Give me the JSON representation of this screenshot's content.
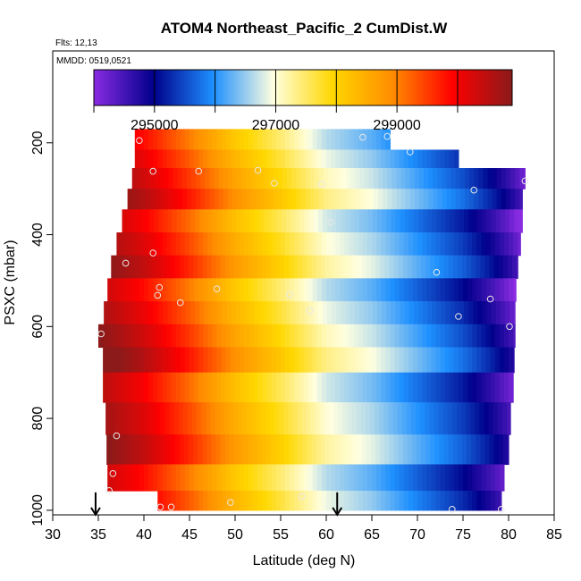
{
  "chart_data": {
    "type": "heatmap",
    "title": "ATOM4 Northeast_Pacific_2 CumDist.W",
    "flights_label": "Flts: 12,13",
    "dates_label": "MMDD: 0519,0521",
    "xlabel": "Latitude (deg N)",
    "ylabel": "PSXC (mbar)",
    "xlim": [
      30,
      85
    ],
    "ylim": [
      1010,
      0
    ],
    "x_ticks": [
      "30",
      "35",
      "40",
      "45",
      "50",
      "55",
      "60",
      "65",
      "70",
      "75",
      "80",
      "85"
    ],
    "y_ticks": [
      "200",
      "400",
      "600",
      "800",
      "1000"
    ],
    "grid": false,
    "colorbar": {
      "position": "top",
      "range": [
        294000,
        300900
      ],
      "tick_labels": [
        "295000",
        "297000",
        "299000"
      ],
      "tick_values": [
        295000,
        297000,
        299000
      ],
      "colors": [
        "#8a2be2",
        "#00008b",
        "#1e90ff",
        "#ffffe0",
        "#ffd700",
        "#ff8c00",
        "#ff0000",
        "#8b1a1a"
      ]
    },
    "rows": [
      {
        "p": 200,
        "lat_min": 39.0,
        "lat_max": 67.0
      },
      {
        "p": 230,
        "lat_min": 39.0,
        "lat_max": 74.5
      },
      {
        "p": 280,
        "lat_min": 38.7,
        "lat_max": 81.8
      },
      {
        "p": 320,
        "lat_min": 38.2,
        "lat_max": 81.5
      },
      {
        "p": 370,
        "lat_min": 37.6,
        "lat_max": 81.5
      },
      {
        "p": 420,
        "lat_min": 37.0,
        "lat_max": 81.3
      },
      {
        "p": 470,
        "lat_min": 36.4,
        "lat_max": 81.0
      },
      {
        "p": 520,
        "lat_min": 36.0,
        "lat_max": 80.8
      },
      {
        "p": 570,
        "lat_min": 35.6,
        "lat_max": 80.7
      },
      {
        "p": 620,
        "lat_min": 35.0,
        "lat_max": 80.7
      },
      {
        "p": 670,
        "lat_min": 35.5,
        "lat_max": 80.6
      },
      {
        "p": 730,
        "lat_min": 35.5,
        "lat_max": 80.5
      },
      {
        "p": 800,
        "lat_min": 35.8,
        "lat_max": 80.2
      },
      {
        "p": 870,
        "lat_min": 35.9,
        "lat_max": 80.0
      },
      {
        "p": 930,
        "lat_min": 36.0,
        "lat_max": 79.5
      },
      {
        "p": 985,
        "lat_min": 41.5,
        "lat_max": 79.2
      }
    ],
    "profile_stops": [
      {
        "lat": 35,
        "value": 300800
      },
      {
        "lat": 40,
        "value": 300200
      },
      {
        "lat": 45,
        "value": 299400
      },
      {
        "lat": 50,
        "value": 298500
      },
      {
        "lat": 55,
        "value": 297800
      },
      {
        "lat": 60,
        "value": 297000
      },
      {
        "lat": 65,
        "value": 296600
      },
      {
        "lat": 70,
        "value": 296000
      },
      {
        "lat": 75,
        "value": 295400
      },
      {
        "lat": 78,
        "value": 294900
      },
      {
        "lat": 80,
        "value": 294500
      },
      {
        "lat": 82,
        "value": 294000
      }
    ],
    "points": [
      {
        "x": 39.5,
        "y": 195
      },
      {
        "x": 41.0,
        "y": 262
      },
      {
        "x": 46.0,
        "y": 262
      },
      {
        "x": 52.5,
        "y": 260
      },
      {
        "x": 54.3,
        "y": 288
      },
      {
        "x": 59.5,
        "y": 290
      },
      {
        "x": 60.5,
        "y": 373
      },
      {
        "x": 64.0,
        "y": 188
      },
      {
        "x": 66.7,
        "y": 186
      },
      {
        "x": 69.2,
        "y": 220
      },
      {
        "x": 76.2,
        "y": 303
      },
      {
        "x": 81.8,
        "y": 283
      },
      {
        "x": 38.0,
        "y": 462
      },
      {
        "x": 41.0,
        "y": 440
      },
      {
        "x": 41.7,
        "y": 515
      },
      {
        "x": 41.5,
        "y": 532
      },
      {
        "x": 44.0,
        "y": 548
      },
      {
        "x": 48.0,
        "y": 518
      },
      {
        "x": 56.0,
        "y": 530
      },
      {
        "x": 58.2,
        "y": 566
      },
      {
        "x": 72.1,
        "y": 482
      },
      {
        "x": 74.5,
        "y": 578
      },
      {
        "x": 78.0,
        "y": 540
      },
      {
        "x": 80.1,
        "y": 600
      },
      {
        "x": 35.3,
        "y": 616
      },
      {
        "x": 37.0,
        "y": 838
      },
      {
        "x": 36.6,
        "y": 920
      },
      {
        "x": 36.2,
        "y": 957
      },
      {
        "x": 41.8,
        "y": 993
      },
      {
        "x": 43.0,
        "y": 993
      },
      {
        "x": 49.5,
        "y": 983
      },
      {
        "x": 57.3,
        "y": 970
      },
      {
        "x": 73.8,
        "y": 998
      },
      {
        "x": 79.2,
        "y": 998
      }
    ],
    "arrows": [
      {
        "lat": 34.7,
        "p": 1000
      },
      {
        "lat": 61.2,
        "p": 1000
      }
    ]
  }
}
